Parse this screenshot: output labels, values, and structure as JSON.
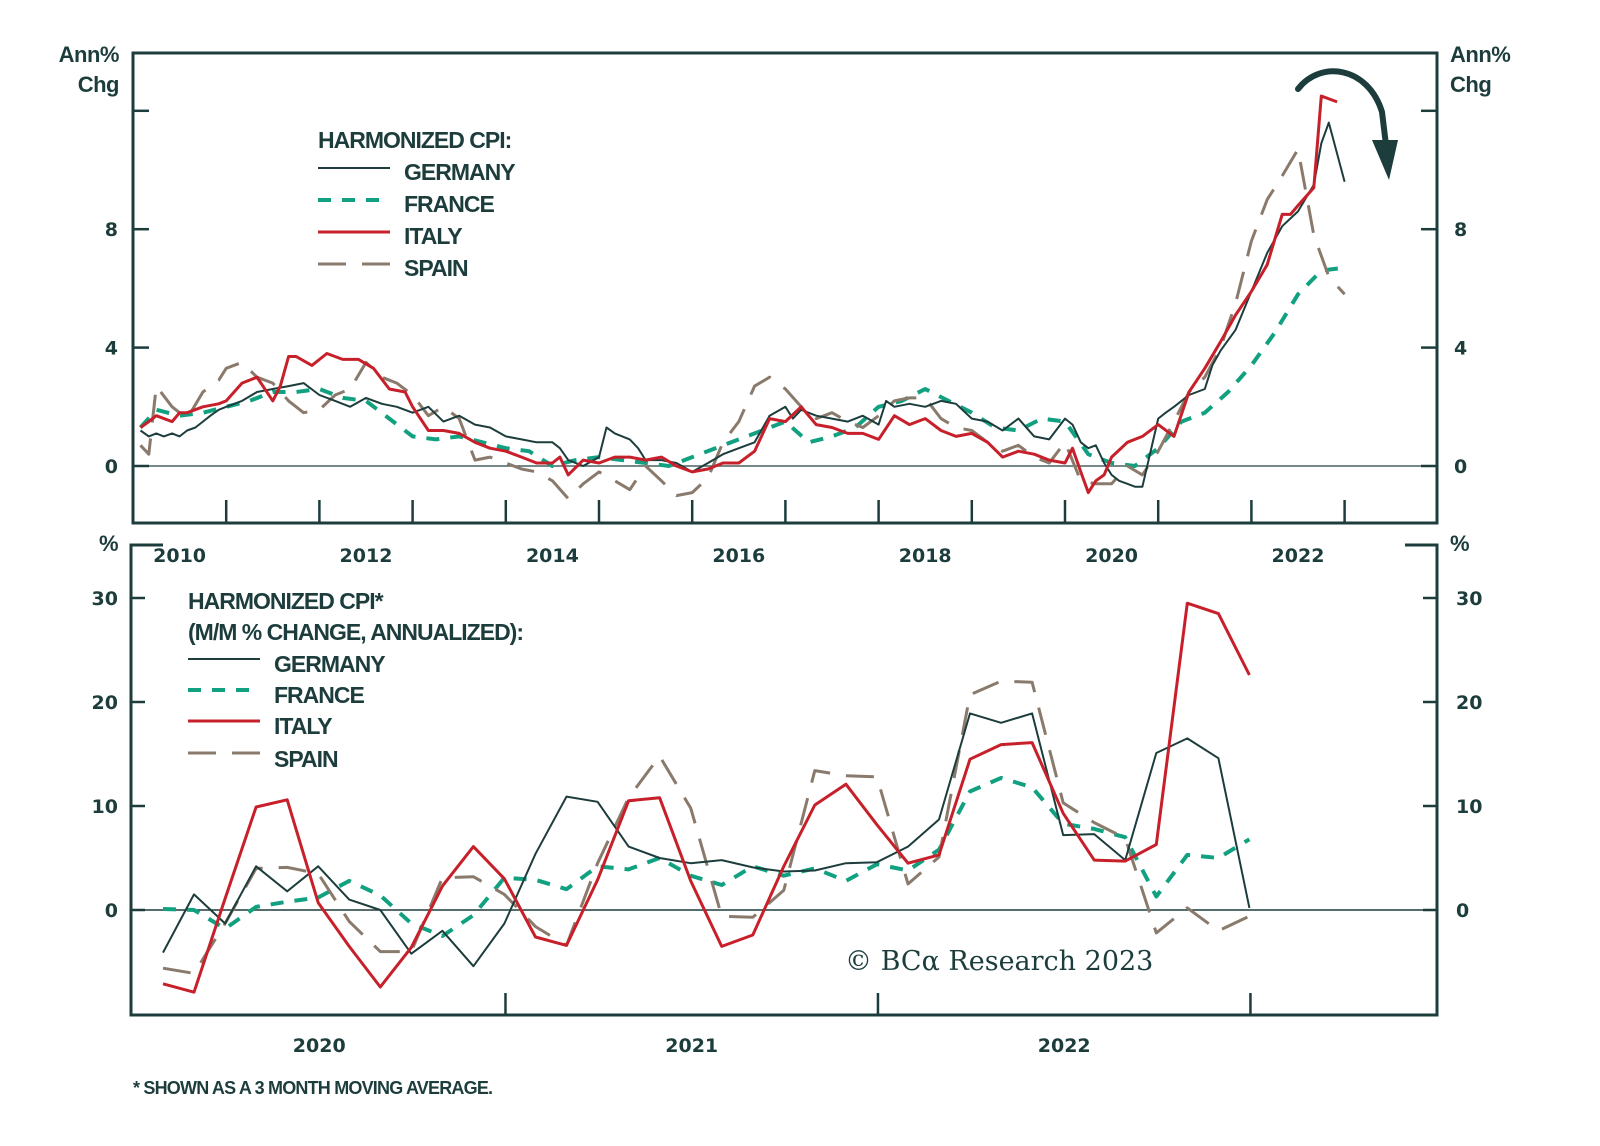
{
  "chart_data": [
    {
      "id": "top",
      "type": "line",
      "title": "",
      "legend_title": "HARMONIZED CPI:",
      "legend_position": "top-left",
      "ylabel_left": [
        "Ann%",
        "Chg"
      ],
      "ylabel_right": [
        "Ann%",
        "Chg"
      ],
      "ylim": [
        -2,
        12.5
      ],
      "yticks": [
        0,
        4,
        8
      ],
      "ytick_marks": [
        0,
        4,
        8,
        12
      ],
      "xlim": [
        2010.0,
        2024.0
      ],
      "xtick_labels": [
        "2010",
        "2012",
        "2014",
        "2016",
        "2018",
        "2020",
        "2022"
      ],
      "xtick_label_positions": [
        2010.5,
        2012.5,
        2014.5,
        2016.5,
        2018.5,
        2020.5,
        2022.5
      ],
      "xtick_marks": [
        2011,
        2012,
        2013,
        2014,
        2015,
        2016,
        2017,
        2018,
        2019,
        2020,
        2021,
        2022,
        2023
      ],
      "annotation": "curved-arrow-down",
      "series": [
        {
          "name": "GERMANY",
          "style": "solid",
          "color": "#1d3d3d",
          "x": [
            2010.08,
            2010.17,
            2010.25,
            2010.33,
            2010.42,
            2010.5,
            2010.58,
            2010.67,
            2010.75,
            2010.83,
            2010.92,
            2011.0,
            2011.17,
            2011.33,
            2011.5,
            2011.67,
            2011.83,
            2012.0,
            2012.17,
            2012.33,
            2012.5,
            2012.67,
            2012.83,
            2013.0,
            2013.17,
            2013.33,
            2013.5,
            2013.67,
            2013.83,
            2014.0,
            2014.17,
            2014.33,
            2014.5,
            2014.58,
            2014.67,
            2014.83,
            2015.0,
            2015.08,
            2015.17,
            2015.25,
            2015.33,
            2015.42,
            2015.5,
            2015.67,
            2015.83,
            2016.0,
            2016.17,
            2016.33,
            2016.5,
            2016.67,
            2016.83,
            2017.0,
            2017.08,
            2017.17,
            2017.33,
            2017.5,
            2017.67,
            2017.83,
            2018.0,
            2018.08,
            2018.17,
            2018.33,
            2018.5,
            2018.67,
            2018.83,
            2019.0,
            2019.17,
            2019.33,
            2019.5,
            2019.67,
            2019.83,
            2020.0,
            2020.08,
            2020.17,
            2020.25,
            2020.33,
            2020.42,
            2020.5,
            2020.58,
            2020.67,
            2020.75,
            2020.83,
            2021.0,
            2021.08,
            2021.17,
            2021.33,
            2021.5,
            2021.58,
            2021.67,
            2021.83,
            2022.0,
            2022.17,
            2022.33,
            2022.5,
            2022.67,
            2022.75,
            2022.83,
            2023.0
          ],
          "y": [
            1.2,
            1.0,
            1.1,
            1.0,
            1.1,
            1.0,
            1.2,
            1.3,
            1.5,
            1.7,
            1.9,
            2.0,
            2.2,
            2.5,
            2.6,
            2.7,
            2.8,
            2.4,
            2.2,
            2.0,
            2.3,
            2.1,
            2.0,
            1.8,
            2.0,
            1.5,
            1.7,
            1.4,
            1.3,
            1.0,
            0.9,
            0.8,
            0.8,
            0.6,
            0.2,
            0.0,
            0.3,
            1.3,
            1.1,
            1.0,
            0.9,
            0.6,
            0.2,
            0.2,
            0.1,
            -0.2,
            0.1,
            0.4,
            0.6,
            0.8,
            1.7,
            2.0,
            1.6,
            1.9,
            1.7,
            1.6,
            1.5,
            1.7,
            1.4,
            2.2,
            2.0,
            2.1,
            2.0,
            2.2,
            2.1,
            1.6,
            1.5,
            1.2,
            1.6,
            1.0,
            0.9,
            1.6,
            1.4,
            0.8,
            0.6,
            0.7,
            0.1,
            -0.3,
            -0.5,
            -0.6,
            -0.7,
            -0.7,
            1.6,
            1.8,
            2.0,
            2.4,
            2.6,
            3.4,
            3.9,
            4.6,
            5.9,
            7.2,
            8.1,
            8.6,
            9.5,
            10.9,
            11.6,
            9.6
          ]
        },
        {
          "name": "FRANCE",
          "style": "dashed",
          "color": "#12a180",
          "x": [
            2010.08,
            2010.25,
            2010.5,
            2010.75,
            2011.0,
            2011.25,
            2011.5,
            2011.75,
            2012.0,
            2012.25,
            2012.5,
            2012.75,
            2013.0,
            2013.25,
            2013.5,
            2013.75,
            2014.0,
            2014.25,
            2014.5,
            2014.75,
            2015.0,
            2015.25,
            2015.5,
            2015.75,
            2016.0,
            2016.25,
            2016.5,
            2016.75,
            2017.0,
            2017.25,
            2017.5,
            2017.75,
            2018.0,
            2018.25,
            2018.5,
            2018.75,
            2019.0,
            2019.25,
            2019.5,
            2019.75,
            2020.0,
            2020.25,
            2020.5,
            2020.75,
            2021.0,
            2021.25,
            2021.5,
            2021.75,
            2022.0,
            2022.25,
            2022.5,
            2022.75,
            2023.0
          ],
          "y": [
            1.3,
            1.9,
            1.7,
            1.8,
            2.0,
            2.2,
            2.5,
            2.5,
            2.6,
            2.3,
            2.2,
            1.6,
            1.0,
            0.9,
            1.0,
            0.8,
            0.6,
            0.5,
            0.0,
            0.2,
            0.3,
            0.2,
            0.1,
            0.0,
            0.3,
            0.6,
            0.9,
            1.2,
            1.5,
            0.8,
            1.0,
            1.3,
            2.0,
            2.2,
            2.6,
            2.2,
            1.8,
            1.3,
            1.2,
            1.6,
            1.5,
            0.4,
            0.1,
            0.0,
            0.6,
            1.5,
            1.8,
            2.5,
            3.4,
            4.5,
            5.8,
            6.6,
            6.7
          ]
        },
        {
          "name": "ITALY",
          "style": "solid",
          "color": "#c8202a",
          "x": [
            2010.08,
            2010.17,
            2010.25,
            2010.42,
            2010.5,
            2010.58,
            2010.75,
            2010.92,
            2011.0,
            2011.17,
            2011.33,
            2011.5,
            2011.58,
            2011.67,
            2011.75,
            2011.92,
            2012.08,
            2012.25,
            2012.42,
            2012.58,
            2012.75,
            2012.92,
            2013.0,
            2013.17,
            2013.33,
            2013.5,
            2013.67,
            2013.83,
            2014.0,
            2014.17,
            2014.33,
            2014.5,
            2014.58,
            2014.67,
            2014.83,
            2015.0,
            2015.17,
            2015.33,
            2015.5,
            2015.67,
            2015.83,
            2016.0,
            2016.17,
            2016.33,
            2016.5,
            2016.67,
            2016.83,
            2017.0,
            2017.17,
            2017.33,
            2017.5,
            2017.67,
            2017.83,
            2018.0,
            2018.17,
            2018.33,
            2018.5,
            2018.67,
            2018.83,
            2019.0,
            2019.17,
            2019.33,
            2019.5,
            2019.67,
            2019.83,
            2020.0,
            2020.08,
            2020.17,
            2020.25,
            2020.33,
            2020.42,
            2020.5,
            2020.67,
            2020.83,
            2021.0,
            2021.17,
            2021.33,
            2021.5,
            2021.67,
            2021.83,
            2022.0,
            2022.17,
            2022.33,
            2022.42,
            2022.5,
            2022.67,
            2022.75,
            2022.92
          ],
          "y": [
            1.3,
            1.5,
            1.7,
            1.5,
            1.8,
            1.8,
            2.0,
            2.1,
            2.2,
            2.8,
            3.0,
            2.2,
            2.7,
            3.7,
            3.7,
            3.4,
            3.8,
            3.6,
            3.6,
            3.3,
            2.6,
            2.5,
            2.0,
            1.2,
            1.2,
            1.1,
            0.8,
            0.6,
            0.5,
            0.3,
            0.1,
            0.1,
            0.3,
            -0.3,
            0.2,
            0.1,
            0.3,
            0.3,
            0.2,
            0.3,
            0.0,
            -0.2,
            -0.1,
            0.1,
            0.1,
            0.5,
            1.6,
            1.5,
            2.0,
            1.4,
            1.3,
            1.1,
            1.1,
            0.9,
            1.7,
            1.4,
            1.6,
            1.2,
            1.0,
            1.1,
            0.8,
            0.3,
            0.5,
            0.4,
            0.2,
            0.1,
            0.6,
            -0.2,
            -0.9,
            -0.5,
            -0.3,
            0.3,
            0.8,
            1.0,
            1.4,
            1.0,
            2.5,
            3.3,
            4.2,
            5.1,
            5.9,
            6.8,
            8.5,
            8.5,
            8.8,
            9.4,
            12.5,
            12.3
          ]
        },
        {
          "name": "SPAIN",
          "style": "longdash",
          "color": "#8a7a6c",
          "x": [
            2010.08,
            2010.17,
            2010.25,
            2010.42,
            2010.58,
            2010.75,
            2010.92,
            2011.0,
            2011.17,
            2011.33,
            2011.5,
            2011.67,
            2011.83,
            2012.0,
            2012.17,
            2012.33,
            2012.5,
            2012.67,
            2012.83,
            2013.0,
            2013.17,
            2013.33,
            2013.5,
            2013.67,
            2013.83,
            2014.0,
            2014.17,
            2014.33,
            2014.5,
            2014.67,
            2014.83,
            2015.0,
            2015.17,
            2015.33,
            2015.5,
            2015.67,
            2015.83,
            2016.0,
            2016.17,
            2016.33,
            2016.5,
            2016.67,
            2016.83,
            2017.0,
            2017.17,
            2017.33,
            2017.5,
            2017.67,
            2017.83,
            2018.0,
            2018.17,
            2018.33,
            2018.5,
            2018.67,
            2018.83,
            2019.0,
            2019.17,
            2019.33,
            2019.5,
            2019.67,
            2019.83,
            2020.0,
            2020.17,
            2020.33,
            2020.5,
            2020.67,
            2020.83,
            2021.0,
            2021.17,
            2021.33,
            2021.5,
            2021.67,
            2021.83,
            2022.0,
            2022.17,
            2022.33,
            2022.5,
            2022.67,
            2022.83,
            2023.0
          ],
          "y": [
            0.7,
            0.4,
            2.7,
            2.0,
            1.6,
            2.5,
            2.9,
            3.3,
            3.5,
            3.0,
            2.8,
            2.2,
            1.8,
            1.9,
            2.4,
            2.6,
            3.5,
            3.0,
            2.8,
            2.4,
            1.7,
            2.0,
            1.6,
            0.2,
            0.3,
            0.1,
            -0.1,
            -0.2,
            -0.5,
            -1.1,
            -0.6,
            -0.2,
            -0.5,
            -0.8,
            0.0,
            -0.5,
            -1.0,
            -0.9,
            -0.4,
            0.8,
            1.5,
            2.7,
            3.0,
            2.6,
            2.0,
            1.6,
            1.8,
            1.5,
            1.3,
            1.7,
            2.2,
            2.3,
            2.3,
            1.6,
            1.3,
            1.2,
            0.8,
            0.5,
            0.7,
            0.3,
            0.1,
            0.8,
            -0.5,
            -0.6,
            -0.6,
            0.0,
            -0.3,
            0.5,
            1.5,
            2.5,
            3.0,
            4.0,
            5.5,
            7.6,
            9.0,
            9.8,
            10.7,
            7.8,
            6.4,
            5.8
          ]
        }
      ]
    },
    {
      "id": "bottom",
      "type": "line",
      "title": "",
      "legend_title": [
        "HARMONIZED CPI*",
        "(M/M % CHANGE, ANNUALIZED):"
      ],
      "legend_position": "top-left",
      "ylabel_left": "%",
      "ylabel_right": "%",
      "ylim": [
        -10,
        35
      ],
      "yticks": [
        0,
        10,
        20,
        30
      ],
      "xlim": [
        2019.92,
        2023.42
      ],
      "xtick_labels": [
        "2020",
        "2021",
        "2022"
      ],
      "xtick_label_positions": [
        2020.5,
        2021.5,
        2022.5
      ],
      "xtick_marks": [
        2021,
        2022,
        2023
      ],
      "months": [
        "2020-01",
        "2020-02",
        "2020-03",
        "2020-04",
        "2020-05",
        "2020-06",
        "2020-07",
        "2020-08",
        "2020-09",
        "2020-10",
        "2020-11",
        "2020-12",
        "2021-01",
        "2021-02",
        "2021-03",
        "2021-04",
        "2021-05",
        "2021-06",
        "2021-07",
        "2021-08",
        "2021-09",
        "2021-10",
        "2021-11",
        "2021-12",
        "2022-01",
        "2022-02",
        "2022-03",
        "2022-04",
        "2022-05",
        "2022-06",
        "2022-07",
        "2022-08",
        "2022-09",
        "2022-10",
        "2022-11",
        "2022-12",
        "2023-01"
      ],
      "series": [
        {
          "name": "GERMANY",
          "style": "solid",
          "color": "#1d3d3d",
          "values": [
            -4.1,
            1.5,
            -1.3,
            4.2,
            1.8,
            4.2,
            1.0,
            0.0,
            -4.2,
            -2.0,
            -5.4,
            -1.3,
            5.4,
            10.9,
            10.4,
            6.1,
            5.0,
            4.5,
            4.8,
            4.1,
            3.7,
            3.8,
            4.5,
            4.6,
            6.1,
            8.7,
            18.9,
            18.0,
            18.9,
            7.2,
            7.3,
            4.8,
            15.1,
            16.5,
            14.6,
            0.2,
            null
          ]
        },
        {
          "name": "FRANCE",
          "style": "dashed",
          "color": "#12a180",
          "values": [
            0.1,
            0.0,
            -1.8,
            0.3,
            0.8,
            1.2,
            2.8,
            1.4,
            -1.3,
            -2.5,
            -0.5,
            3.1,
            2.9,
            2.0,
            4.2,
            3.9,
            5.0,
            3.3,
            2.4,
            4.2,
            3.3,
            4.0,
            2.8,
            4.4,
            3.8,
            5.8,
            11.4,
            12.7,
            11.8,
            8.3,
            7.8,
            7.0,
            1.3,
            5.3,
            5.0,
            6.8,
            null
          ]
        },
        {
          "name": "ITALY",
          "style": "solid",
          "color": "#c8202a",
          "values": [
            -7.1,
            -7.9,
            1.1,
            9.9,
            10.6,
            0.7,
            -3.5,
            -7.4,
            -3.6,
            2.3,
            6.1,
            3.0,
            -2.6,
            -3.4,
            2.9,
            10.5,
            10.8,
            2.8,
            -3.5,
            -2.4,
            4.2,
            10.1,
            12.1,
            8.2,
            4.5,
            5.3,
            14.5,
            15.9,
            16.1,
            9.3,
            4.8,
            4.7,
            6.3,
            29.5,
            28.5,
            22.6,
            null
          ]
        },
        {
          "name": "SPAIN",
          "style": "longdash",
          "color": "#8a7a6c",
          "values": [
            -5.6,
            -6.1,
            -1.3,
            4.0,
            4.1,
            3.5,
            -1.1,
            -4.0,
            -4.0,
            3.1,
            3.2,
            1.5,
            -1.6,
            -3.4,
            4.5,
            10.8,
            14.8,
            9.8,
            -0.6,
            -0.7,
            1.9,
            13.4,
            12.9,
            12.8,
            2.5,
            5.1,
            20.7,
            22.0,
            21.9,
            10.3,
            8.4,
            6.9,
            -2.2,
            0.2,
            -2.0,
            -0.6,
            null
          ]
        }
      ],
      "annotation_text": "© BCA Research 2023"
    }
  ],
  "legend": {
    "top_title": "HARMONIZED CPI:",
    "bottom_title_line1": "HARMONIZED CPI*",
    "bottom_title_line2": "(M/M % CHANGE, ANNUALIZED):",
    "items": [
      "GERMANY",
      "FRANCE",
      "ITALY",
      "SPAIN"
    ]
  },
  "axes": {
    "top_unit_line1": "Ann%",
    "top_unit_line2": "Chg",
    "bottom_unit": "%"
  },
  "copyright": "© BCα Research 2023",
  "footnote": "* SHOWN AS A 3 MONTH MOVING AVERAGE."
}
